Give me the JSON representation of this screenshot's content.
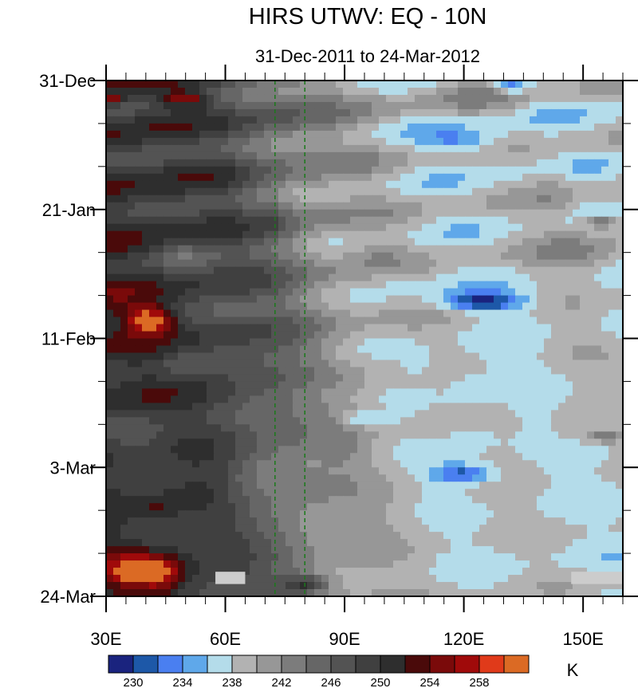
{
  "chart_data": {
    "type": "heatmap",
    "title": "HIRS UTWV: EQ - 10N",
    "subtitle": "31-Dec-2011 to 24-Mar-2012",
    "xlabel": "",
    "ylabel": "",
    "x_range": [
      30,
      160
    ],
    "x_ticks": [
      {
        "value": 30,
        "label": "30E"
      },
      {
        "value": 60,
        "label": "60E"
      },
      {
        "value": 90,
        "label": "90E"
      },
      {
        "value": 120,
        "label": "120E"
      },
      {
        "value": 150,
        "label": "150E"
      }
    ],
    "y_range_days": [
      0,
      84
    ],
    "y_ticks": [
      {
        "day": 0,
        "label": "31-Dec"
      },
      {
        "day": 21,
        "label": "21-Jan"
      },
      {
        "day": 42,
        "label": "11-Feb"
      },
      {
        "day": 63,
        "label": "3-Mar"
      },
      {
        "day": 84,
        "label": "24-Mar"
      }
    ],
    "reference_lines_lon": [
      72.5,
      80
    ],
    "colorbar": {
      "units": "K",
      "levels": [
        230,
        232,
        234,
        236,
        238,
        240,
        242,
        244,
        246,
        248,
        250,
        252,
        254,
        256,
        258
      ],
      "labels": [
        "230",
        "234",
        "238",
        "242",
        "246",
        "250",
        "254",
        "258"
      ],
      "colors": [
        "#1a237e",
        "#1d58a8",
        "#4a7ff0",
        "#5fa8ea",
        "#b4dcea",
        "#b2b2b2",
        "#979797",
        "#7c7c7c",
        "#666666",
        "#535353",
        "#404040",
        "#2e2e2e",
        "#4a0a0a",
        "#7a0a0a",
        "#a00a0a",
        "#e03a1a",
        "#db6a24"
      ]
    },
    "missing_value_color": "#cccccc"
  }
}
